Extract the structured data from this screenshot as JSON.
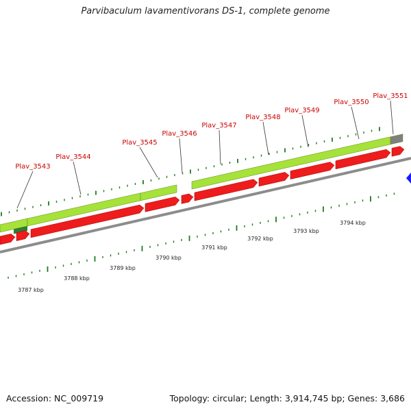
{
  "title": "Parvibaculum lavamentivorans DS-1, complete genome",
  "footer": {
    "accession": "Accession: NC_009719",
    "summary": "Topology: circular; Length: 3,914,745 bp; Genes: 3,686"
  },
  "colors": {
    "gene_label": "#cc0000",
    "cds_red": "#ee1c1c",
    "gene_green": "#a6e23a",
    "gene_dark_green": "#2e7d32",
    "tick_green": "#1e7a1e",
    "backbone_gray": "#8c8c8c",
    "unknown_gray": "#808080",
    "marker_blue": "#1a1aff"
  },
  "gene_labels": [
    "Plav_3543",
    "Plav_3544",
    "Plav_3545",
    "Plav_3546",
    "Plav_3547",
    "Plav_3548",
    "Plav_3549",
    "Plav_3550",
    "Plav_3551"
  ],
  "scale_labels": [
    "3787 kbp",
    "3788 kbp",
    "3789 kbp",
    "3790 kbp",
    "3791 kbp",
    "3792 kbp",
    "3793 kbp",
    "3794 kbp"
  ]
}
